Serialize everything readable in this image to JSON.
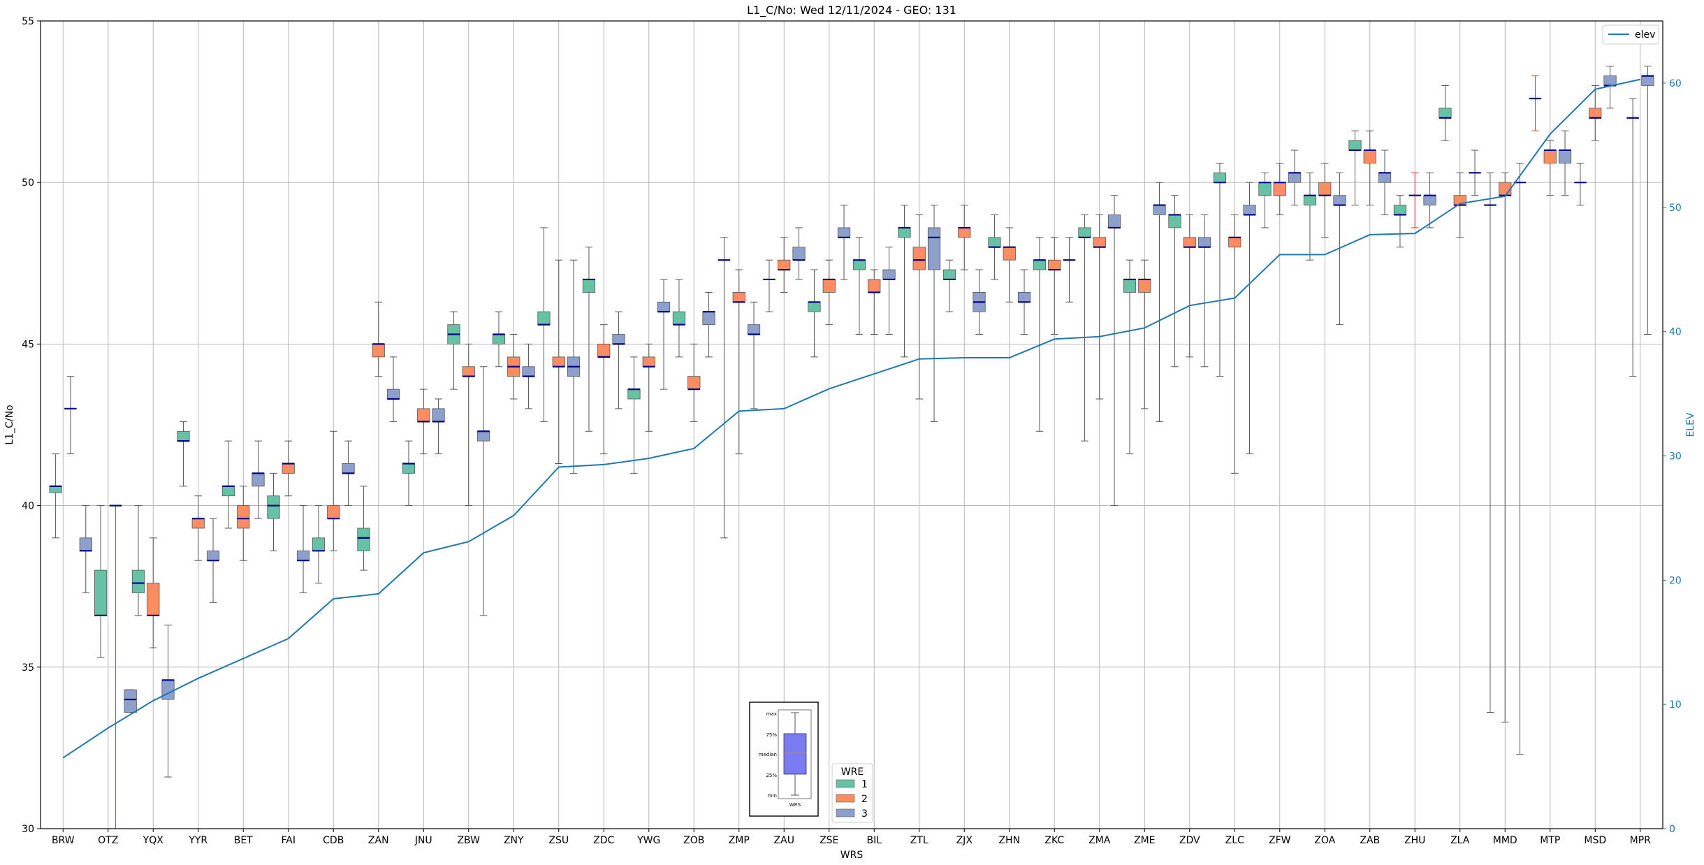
{
  "chart_data": {
    "type": "box",
    "title": "L1_C/No: Wed 12/11/2024 - GEO: 131",
    "xlabel": "WRS",
    "ylabel": "L1_C/No",
    "y2label": "ELEV",
    "ylim": [
      30,
      55
    ],
    "y2lim": [
      0,
      65
    ],
    "yticks": [
      30,
      35,
      40,
      45,
      50,
      55
    ],
    "y2ticks": [
      0,
      10,
      20,
      30,
      40,
      50,
      60
    ],
    "grid": true,
    "categories": [
      "BRW",
      "OTZ",
      "YQX",
      "YYR",
      "BET",
      "FAI",
      "CDB",
      "ZAN",
      "JNU",
      "ZBW",
      "ZNY",
      "ZSU",
      "ZDC",
      "YWG",
      "ZOB",
      "ZMP",
      "ZAU",
      "ZSE",
      "BIL",
      "ZTL",
      "ZJX",
      "ZHN",
      "ZKC",
      "ZMA",
      "ZME",
      "ZDV",
      "ZLC",
      "ZFW",
      "ZOA",
      "ZAB",
      "ZHU",
      "ZLA",
      "MMD",
      "MTP",
      "MSD",
      "MPR"
    ],
    "wre_colors": {
      "1": "#66c2a5",
      "2": "#fc8d62",
      "3": "#8da0cb"
    },
    "median_color": "#00008b",
    "whisker_color": "#555555",
    "elev_color": "#1f77b4",
    "boxes": [
      {
        "cat": "BRW",
        "wre": 1,
        "min": 39.0,
        "q1": 40.4,
        "med": 40.6,
        "q3": 40.6,
        "max": 41.6
      },
      {
        "cat": "BRW",
        "wre": 3,
        "min": 41.6,
        "q1": 43.0,
        "med": 43.0,
        "q3": 43.0,
        "max": 44.0
      },
      {
        "cat": "OTZ",
        "wre": 3,
        "min": 37.3,
        "q1": 38.6,
        "med": 38.6,
        "q3": 39.0,
        "max": 40.0
      },
      {
        "cat": "OTZ",
        "wre": 1,
        "min": 35.3,
        "q1": 36.6,
        "med": 36.6,
        "q3": 38.0,
        "max": 40.0
      },
      {
        "cat": "OTZ",
        "wre": 2,
        "min": 30.0,
        "q1": 40.0,
        "med": 40.0,
        "q3": 40.0,
        "max": 40.0
      },
      {
        "cat": "OTZ",
        "wre": 3,
        "min": 33.6,
        "q1": 33.6,
        "med": 34.0,
        "q3": 34.3,
        "max": 34.3
      },
      {
        "cat": "YQX",
        "wre": 1,
        "min": 36.6,
        "q1": 37.3,
        "med": 37.6,
        "q3": 38.0,
        "max": 40.0
      },
      {
        "cat": "YQX",
        "wre": 2,
        "min": 35.6,
        "q1": 36.6,
        "med": 36.6,
        "q3": 37.6,
        "max": 39.0
      },
      {
        "cat": "YQX",
        "wre": 3,
        "min": 31.6,
        "q1": 34.0,
        "med": 34.6,
        "q3": 34.6,
        "max": 36.3
      },
      {
        "cat": "YYR",
        "wre": 1,
        "min": 40.6,
        "q1": 42.0,
        "med": 42.0,
        "q3": 42.3,
        "max": 42.6
      },
      {
        "cat": "YYR",
        "wre": 2,
        "min": 38.3,
        "q1": 39.3,
        "med": 39.6,
        "q3": 39.6,
        "max": 40.3
      },
      {
        "cat": "YYR",
        "wre": 3,
        "min": 37.0,
        "q1": 38.3,
        "med": 38.3,
        "q3": 38.6,
        "max": 39.6
      },
      {
        "cat": "BET",
        "wre": 1,
        "min": 39.3,
        "q1": 40.3,
        "med": 40.6,
        "q3": 40.6,
        "max": 42.0
      },
      {
        "cat": "BET",
        "wre": 2,
        "min": 38.3,
        "q1": 39.3,
        "med": 39.6,
        "q3": 40.0,
        "max": 40.6
      },
      {
        "cat": "BET",
        "wre": 3,
        "min": 39.6,
        "q1": 40.6,
        "med": 41.0,
        "q3": 41.0,
        "max": 42.0
      },
      {
        "cat": "FAI",
        "wre": 1,
        "min": 38.6,
        "q1": 39.6,
        "med": 40.0,
        "q3": 40.3,
        "max": 41.0
      },
      {
        "cat": "FAI",
        "wre": 2,
        "min": 40.3,
        "q1": 41.0,
        "med": 41.3,
        "q3": 41.3,
        "max": 42.0
      },
      {
        "cat": "FAI",
        "wre": 3,
        "min": 37.3,
        "q1": 38.3,
        "med": 38.3,
        "q3": 38.6,
        "max": 40.0
      },
      {
        "cat": "CDB",
        "wre": 1,
        "min": 37.6,
        "q1": 38.6,
        "med": 38.6,
        "q3": 39.0,
        "max": 40.0
      },
      {
        "cat": "CDB",
        "wre": 2,
        "min": 38.6,
        "q1": 39.6,
        "med": 39.6,
        "q3": 40.0,
        "max": 42.3
      },
      {
        "cat": "CDB",
        "wre": 3,
        "min": 40.0,
        "q1": 41.0,
        "med": 41.0,
        "q3": 41.3,
        "max": 42.0
      },
      {
        "cat": "ZAN",
        "wre": 1,
        "min": 38.0,
        "q1": 38.6,
        "med": 39.0,
        "q3": 39.3,
        "max": 40.6
      },
      {
        "cat": "ZAN",
        "wre": 2,
        "min": 44.0,
        "q1": 44.6,
        "med": 45.0,
        "q3": 45.0,
        "max": 46.3
      },
      {
        "cat": "ZAN",
        "wre": 3,
        "min": 42.6,
        "q1": 43.3,
        "med": 43.3,
        "q3": 43.6,
        "max": 44.6
      },
      {
        "cat": "JNU",
        "wre": 1,
        "min": 40.0,
        "q1": 41.0,
        "med": 41.3,
        "q3": 41.3,
        "max": 42.0
      },
      {
        "cat": "JNU",
        "wre": 2,
        "min": 41.6,
        "q1": 42.6,
        "med": 42.6,
        "q3": 43.0,
        "max": 43.6
      },
      {
        "cat": "JNU",
        "wre": 3,
        "min": 41.6,
        "q1": 42.6,
        "med": 42.6,
        "q3": 43.0,
        "max": 43.3
      },
      {
        "cat": "ZBW",
        "wre": 1,
        "min": 43.6,
        "q1": 45.0,
        "med": 45.3,
        "q3": 45.6,
        "max": 46.0
      },
      {
        "cat": "ZBW",
        "wre": 2,
        "min": 40.0,
        "q1": 44.0,
        "med": 44.0,
        "q3": 44.3,
        "max": 45.0
      },
      {
        "cat": "ZBW",
        "wre": 3,
        "min": 36.6,
        "q1": 42.0,
        "med": 42.3,
        "q3": 42.3,
        "max": 44.3
      },
      {
        "cat": "ZNY",
        "wre": 1,
        "min": 44.3,
        "q1": 45.0,
        "med": 45.3,
        "q3": 45.3,
        "max": 46.0
      },
      {
        "cat": "ZNY",
        "wre": 2,
        "min": 43.3,
        "q1": 44.0,
        "med": 44.3,
        "q3": 44.6,
        "max": 45.3
      },
      {
        "cat": "ZNY",
        "wre": 3,
        "min": 43.0,
        "q1": 44.0,
        "med": 44.0,
        "q3": 44.3,
        "max": 45.0
      },
      {
        "cat": "ZSU",
        "wre": 1,
        "min": 42.6,
        "q1": 45.6,
        "med": 45.6,
        "q3": 46.0,
        "max": 48.6
      },
      {
        "cat": "ZSU",
        "wre": 2,
        "min": 41.3,
        "q1": 44.3,
        "med": 44.3,
        "q3": 44.6,
        "max": 47.6
      },
      {
        "cat": "ZSU",
        "wre": 3,
        "min": 41.0,
        "q1": 44.0,
        "med": 44.3,
        "q3": 44.6,
        "max": 47.6
      },
      {
        "cat": "ZDC",
        "wre": 1,
        "min": 42.3,
        "q1": 46.6,
        "med": 47.0,
        "q3": 47.0,
        "max": 48.0
      },
      {
        "cat": "ZDC",
        "wre": 2,
        "min": 41.6,
        "q1": 44.6,
        "med": 44.6,
        "q3": 45.0,
        "max": 45.6
      },
      {
        "cat": "ZDC",
        "wre": 3,
        "min": 43.0,
        "q1": 45.0,
        "med": 45.0,
        "q3": 45.3,
        "max": 46.0
      },
      {
        "cat": "YWG",
        "wre": 1,
        "min": 41.0,
        "q1": 43.3,
        "med": 43.6,
        "q3": 43.6,
        "max": 44.6
      },
      {
        "cat": "YWG",
        "wre": 2,
        "min": 42.3,
        "q1": 44.3,
        "med": 44.3,
        "q3": 44.6,
        "max": 45.0
      },
      {
        "cat": "YWG",
        "wre": 3,
        "min": 43.6,
        "q1": 46.0,
        "med": 46.0,
        "q3": 46.3,
        "max": 47.0
      },
      {
        "cat": "ZOB",
        "wre": 1,
        "min": 44.6,
        "q1": 45.6,
        "med": 45.6,
        "q3": 46.0,
        "max": 47.0
      },
      {
        "cat": "ZOB",
        "wre": 2,
        "min": 42.6,
        "q1": 43.6,
        "med": 43.6,
        "q3": 44.0,
        "max": 45.0
      },
      {
        "cat": "ZOB",
        "wre": 3,
        "min": 44.6,
        "q1": 45.6,
        "med": 46.0,
        "q3": 46.0,
        "max": 46.6
      },
      {
        "cat": "ZMP",
        "wre": 1,
        "min": 39.0,
        "q1": 47.6,
        "med": 47.6,
        "q3": 47.6,
        "max": 48.3
      },
      {
        "cat": "ZMP",
        "wre": 2,
        "min": 41.6,
        "q1": 46.3,
        "med": 46.3,
        "q3": 46.6,
        "max": 47.3
      },
      {
        "cat": "ZMP",
        "wre": 3,
        "min": 43.0,
        "q1": 45.3,
        "med": 45.3,
        "q3": 45.6,
        "max": 46.3
      },
      {
        "cat": "ZAU",
        "wre": 1,
        "min": 46.0,
        "q1": 47.0,
        "med": 47.0,
        "q3": 47.0,
        "max": 47.6
      },
      {
        "cat": "ZAU",
        "wre": 2,
        "min": 46.6,
        "q1": 47.3,
        "med": 47.3,
        "q3": 47.6,
        "max": 48.3
      },
      {
        "cat": "ZAU",
        "wre": 3,
        "min": 47.0,
        "q1": 47.6,
        "med": 47.6,
        "q3": 48.0,
        "max": 48.6
      },
      {
        "cat": "ZSE",
        "wre": 1,
        "min": 44.6,
        "q1": 46.0,
        "med": 46.3,
        "q3": 46.3,
        "max": 47.3
      },
      {
        "cat": "ZSE",
        "wre": 2,
        "min": 45.6,
        "q1": 46.6,
        "med": 47.0,
        "q3": 47.0,
        "max": 47.6
      },
      {
        "cat": "ZSE",
        "wre": 3,
        "min": 47.0,
        "q1": 48.3,
        "med": 48.3,
        "q3": 48.6,
        "max": 49.3
      },
      {
        "cat": "BIL",
        "wre": 1,
        "min": 45.3,
        "q1": 47.3,
        "med": 47.6,
        "q3": 47.6,
        "max": 48.3
      },
      {
        "cat": "BIL",
        "wre": 2,
        "min": 45.3,
        "q1": 46.6,
        "med": 46.6,
        "q3": 47.0,
        "max": 47.3
      },
      {
        "cat": "BIL",
        "wre": 3,
        "min": 45.3,
        "q1": 47.0,
        "med": 47.0,
        "q3": 47.3,
        "max": 48.0
      },
      {
        "cat": "ZTL",
        "wre": 1,
        "min": 44.6,
        "q1": 48.3,
        "med": 48.6,
        "q3": 48.6,
        "max": 49.3
      },
      {
        "cat": "ZTL",
        "wre": 2,
        "min": 43.3,
        "q1": 47.3,
        "med": 47.6,
        "q3": 48.0,
        "max": 49.0
      },
      {
        "cat": "ZTL",
        "wre": 3,
        "min": 42.6,
        "q1": 47.3,
        "med": 48.3,
        "q3": 48.6,
        "max": 49.3
      },
      {
        "cat": "ZJX",
        "wre": 1,
        "min": 46.0,
        "q1": 47.0,
        "med": 47.0,
        "q3": 47.3,
        "max": 47.6
      },
      {
        "cat": "ZJX",
        "wre": 2,
        "min": 47.3,
        "q1": 48.3,
        "med": 48.6,
        "q3": 48.6,
        "max": 49.3
      },
      {
        "cat": "ZJX",
        "wre": 3,
        "min": 45.3,
        "q1": 46.0,
        "med": 46.3,
        "q3": 46.6,
        "max": 47.3
      },
      {
        "cat": "ZHN",
        "wre": 1,
        "min": 47.0,
        "q1": 48.0,
        "med": 48.0,
        "q3": 48.3,
        "max": 49.0
      },
      {
        "cat": "ZHN",
        "wre": 2,
        "min": 46.3,
        "q1": 47.6,
        "med": 48.0,
        "q3": 48.0,
        "max": 48.6
      },
      {
        "cat": "ZHN",
        "wre": 3,
        "min": 45.3,
        "q1": 46.3,
        "med": 46.3,
        "q3": 46.6,
        "max": 47.3
      },
      {
        "cat": "ZKC",
        "wre": 1,
        "min": 42.3,
        "q1": 47.3,
        "med": 47.6,
        "q3": 47.6,
        "max": 48.3
      },
      {
        "cat": "ZKC",
        "wre": 2,
        "min": 45.3,
        "q1": 47.3,
        "med": 47.3,
        "q3": 47.6,
        "max": 48.3
      },
      {
        "cat": "ZKC",
        "wre": 3,
        "min": 46.3,
        "q1": 47.6,
        "med": 47.6,
        "q3": 47.6,
        "max": 48.3
      },
      {
        "cat": "ZMA",
        "wre": 1,
        "min": 42.0,
        "q1": 48.3,
        "med": 48.3,
        "q3": 48.6,
        "max": 49.0
      },
      {
        "cat": "ZMA",
        "wre": 2,
        "min": 43.3,
        "q1": 48.0,
        "med": 48.0,
        "q3": 48.3,
        "max": 49.0
      },
      {
        "cat": "ZMA",
        "wre": 3,
        "min": 40.0,
        "q1": 48.6,
        "med": 48.6,
        "q3": 49.0,
        "max": 49.6
      },
      {
        "cat": "ZME",
        "wre": 1,
        "min": 41.6,
        "q1": 46.6,
        "med": 47.0,
        "q3": 47.0,
        "max": 47.6
      },
      {
        "cat": "ZME",
        "wre": 2,
        "min": 43.0,
        "q1": 46.6,
        "med": 47.0,
        "q3": 47.0,
        "max": 47.6
      },
      {
        "cat": "ZME",
        "wre": 3,
        "min": 42.6,
        "q1": 49.0,
        "med": 49.3,
        "q3": 49.3,
        "max": 50.0
      },
      {
        "cat": "ZDV",
        "wre": 1,
        "min": 44.3,
        "q1": 48.6,
        "med": 49.0,
        "q3": 49.0,
        "max": 49.6
      },
      {
        "cat": "ZDV",
        "wre": 2,
        "min": 44.6,
        "q1": 48.0,
        "med": 48.0,
        "q3": 48.3,
        "max": 49.0
      },
      {
        "cat": "ZDV",
        "wre": 3,
        "min": 44.3,
        "q1": 48.0,
        "med": 48.0,
        "q3": 48.3,
        "max": 49.0
      },
      {
        "cat": "ZLC",
        "wre": 1,
        "min": 44.0,
        "q1": 50.0,
        "med": 50.0,
        "q3": 50.3,
        "max": 50.6
      },
      {
        "cat": "ZLC",
        "wre": 2,
        "min": 41.0,
        "q1": 48.0,
        "med": 48.3,
        "q3": 48.3,
        "max": 49.0
      },
      {
        "cat": "ZLC",
        "wre": 3,
        "min": 41.6,
        "q1": 49.0,
        "med": 49.0,
        "q3": 49.3,
        "max": 50.0
      },
      {
        "cat": "ZFW",
        "wre": 1,
        "min": 48.6,
        "q1": 49.6,
        "med": 50.0,
        "q3": 50.0,
        "max": 50.3
      },
      {
        "cat": "ZFW",
        "wre": 2,
        "min": 49.0,
        "q1": 49.6,
        "med": 50.0,
        "q3": 50.0,
        "max": 50.6
      },
      {
        "cat": "ZFW",
        "wre": 3,
        "min": 49.3,
        "q1": 50.0,
        "med": 50.3,
        "q3": 50.3,
        "max": 51.0
      },
      {
        "cat": "ZOA",
        "wre": 1,
        "min": 47.6,
        "q1": 49.3,
        "med": 49.6,
        "q3": 49.6,
        "max": 50.3
      },
      {
        "cat": "ZOA",
        "wre": 2,
        "min": 48.3,
        "q1": 49.6,
        "med": 49.6,
        "q3": 50.0,
        "max": 50.6
      },
      {
        "cat": "ZOA",
        "wre": 3,
        "min": 45.6,
        "q1": 49.3,
        "med": 49.3,
        "q3": 49.6,
        "max": 50.3
      },
      {
        "cat": "ZAB",
        "wre": 1,
        "min": 49.3,
        "q1": 51.0,
        "med": 51.0,
        "q3": 51.3,
        "max": 51.6
      },
      {
        "cat": "ZAB",
        "wre": 2,
        "min": 49.3,
        "q1": 50.6,
        "med": 51.0,
        "q3": 51.0,
        "max": 51.6
      },
      {
        "cat": "ZAB",
        "wre": 3,
        "min": 49.0,
        "q1": 50.0,
        "med": 50.3,
        "q3": 50.3,
        "max": 51.0
      },
      {
        "cat": "ZHU",
        "wre": 1,
        "min": 48.0,
        "q1": 49.0,
        "med": 49.0,
        "q3": 49.3,
        "max": 49.6
      },
      {
        "cat": "ZHU",
        "wre": 2,
        "min": 48.6,
        "q1": 49.6,
        "med": 49.6,
        "q3": 49.6,
        "max": 50.3
      },
      {
        "cat": "ZHU",
        "wre": 3,
        "min": 48.6,
        "q1": 49.3,
        "med": 49.6,
        "q3": 49.6,
        "max": 50.3
      },
      {
        "cat": "ZLA",
        "wre": 1,
        "min": 51.3,
        "q1": 52.0,
        "med": 52.0,
        "q3": 52.3,
        "max": 53.0
      },
      {
        "cat": "ZLA",
        "wre": 2,
        "min": 48.3,
        "q1": 49.3,
        "med": 49.3,
        "q3": 49.6,
        "max": 50.3
      },
      {
        "cat": "ZLA",
        "wre": 3,
        "min": 49.6,
        "q1": 50.3,
        "med": 50.3,
        "q3": 50.3,
        "max": 51.0
      },
      {
        "cat": "MMD",
        "wre": 1,
        "min": 33.6,
        "q1": 49.3,
        "med": 49.3,
        "q3": 49.3,
        "max": 50.3
      },
      {
        "cat": "MMD",
        "wre": 2,
        "min": 33.3,
        "q1": 49.6,
        "med": 49.6,
        "q3": 50.0,
        "max": 50.3
      },
      {
        "cat": "MMD",
        "wre": 3,
        "min": 32.3,
        "q1": 50.0,
        "med": 50.0,
        "q3": 50.0,
        "max": 50.6
      },
      {
        "cat": "MTP",
        "wre": 2,
        "min": 51.6,
        "q1": 52.6,
        "med": 52.6,
        "q3": 52.6,
        "max": 53.3
      },
      {
        "cat": "MTP",
        "wre": 2,
        "min": 49.6,
        "q1": 50.6,
        "med": 51.0,
        "q3": 51.0,
        "max": 51.3
      },
      {
        "cat": "MTP",
        "wre": 3,
        "min": 49.6,
        "q1": 50.6,
        "med": 51.0,
        "q3": 51.0,
        "max": 51.6
      },
      {
        "cat": "MSD",
        "wre": 1,
        "min": 49.3,
        "q1": 50.0,
        "med": 50.0,
        "q3": 50.0,
        "max": 50.6
      },
      {
        "cat": "MSD",
        "wre": 2,
        "min": 51.3,
        "q1": 52.0,
        "med": 52.0,
        "q3": 52.3,
        "max": 53.0
      },
      {
        "cat": "MSD",
        "wre": 3,
        "min": 52.3,
        "q1": 53.0,
        "med": 53.0,
        "q3": 53.3,
        "max": 53.6
      },
      {
        "cat": "MPR",
        "wre": 1,
        "min": 44.0,
        "q1": 52.0,
        "med": 52.0,
        "q3": 52.0,
        "max": 52.6
      },
      {
        "cat": "MPR",
        "wre": 3,
        "min": 45.3,
        "q1": 53.0,
        "med": 53.3,
        "q3": 53.3,
        "max": 53.6
      }
    ],
    "elev_series": {
      "name": "elev",
      "values": [
        5.7,
        8.1,
        10.3,
        12.1,
        13.7,
        15.3,
        18.5,
        18.9,
        22.2,
        23.1,
        25.2,
        29.1,
        29.3,
        29.8,
        30.6,
        33.6,
        33.8,
        35.4,
        36.6,
        37.8,
        37.9,
        37.9,
        39.4,
        39.6,
        40.3,
        42.1,
        42.7,
        46.2,
        46.2,
        47.8,
        47.9,
        50.3,
        50.9,
        55.9,
        59.5,
        60.3
      ]
    },
    "legend_elev": {
      "label": "elev",
      "position": "top-right"
    },
    "legend_wre": {
      "title": "WRE",
      "entries": [
        "1",
        "2",
        "3"
      ],
      "position": "bottom-center"
    },
    "key_box": {
      "labels": [
        "max",
        "75%",
        "median",
        "25%",
        "min"
      ],
      "xlabel": "WRS"
    }
  }
}
